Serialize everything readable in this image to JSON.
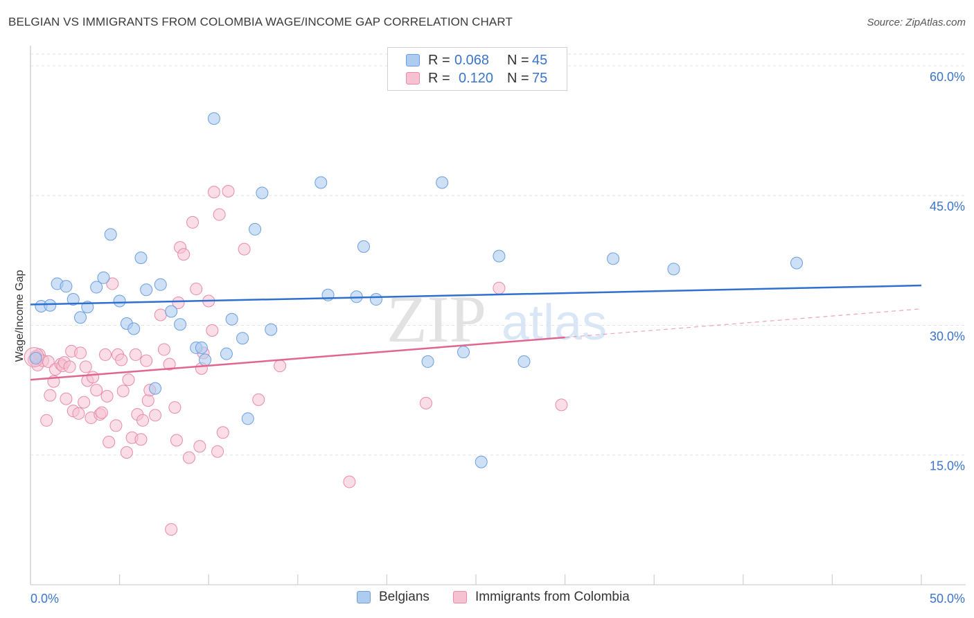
{
  "title": "BELGIAN VS IMMIGRANTS FROM COLOMBIA WAGE/INCOME GAP CORRELATION CHART",
  "source": "Source: ZipAtlas.com",
  "watermark": {
    "zip": "ZIP",
    "atlas": "atlas"
  },
  "legend_top": {
    "rows": [
      {
        "r_label": "R =",
        "r_value": "0.068",
        "n_label": "N =",
        "n_value": "45"
      },
      {
        "r_label": "R =",
        "r_value": "0.120",
        "n_label": "N =",
        "n_value": "75"
      }
    ]
  },
  "legend_bottom": {
    "items": [
      "Belgians",
      "Immigrants from Colombia"
    ]
  },
  "colors": {
    "blue_fill": "#aecbf0",
    "blue_stroke": "#6a9de0",
    "blue_line": "#2f6fd0",
    "pink_fill": "#f6c1d1",
    "pink_stroke": "#e88aa8",
    "pink_line": "#e0668f",
    "axis_text": "#3b74c9",
    "grid": "#e3e3e3"
  },
  "chart_data": {
    "type": "scatter",
    "title": "BELGIAN VS IMMIGRANTS FROM COLOMBIA WAGE/INCOME GAP CORRELATION CHART",
    "xlabel": "",
    "ylabel": "Wage/Income Gap",
    "xlim": [
      0,
      50
    ],
    "ylim": [
      0,
      62
    ],
    "x_tick_labels": [
      {
        "value": 0,
        "label": "0.0%"
      },
      {
        "value": 50,
        "label": "50.0%"
      }
    ],
    "y_tick_labels": [
      {
        "value": 15,
        "label": "15.0%"
      },
      {
        "value": 30,
        "label": "30.0%"
      },
      {
        "value": 45,
        "label": "45.0%"
      },
      {
        "value": 60,
        "label": "60.0%"
      }
    ],
    "grid": true,
    "series": [
      {
        "name": "Belgians",
        "r": 0.068,
        "n": 45,
        "trend": {
          "x": [
            0,
            50
          ],
          "y": [
            32.4,
            34.6
          ]
        },
        "points": [
          {
            "x": 0.3,
            "y": 26.2
          },
          {
            "x": 0.6,
            "y": 32.2
          },
          {
            "x": 1.1,
            "y": 32.3
          },
          {
            "x": 1.5,
            "y": 34.8
          },
          {
            "x": 2.0,
            "y": 34.5
          },
          {
            "x": 2.4,
            "y": 33.0
          },
          {
            "x": 2.8,
            "y": 30.9
          },
          {
            "x": 3.2,
            "y": 32.1
          },
          {
            "x": 3.7,
            "y": 34.4
          },
          {
            "x": 4.1,
            "y": 35.5
          },
          {
            "x": 4.5,
            "y": 40.5
          },
          {
            "x": 5.0,
            "y": 32.8
          },
          {
            "x": 5.4,
            "y": 30.2
          },
          {
            "x": 5.8,
            "y": 29.6
          },
          {
            "x": 6.2,
            "y": 37.8
          },
          {
            "x": 6.5,
            "y": 34.1
          },
          {
            "x": 7.0,
            "y": 22.7
          },
          {
            "x": 7.3,
            "y": 34.7
          },
          {
            "x": 7.9,
            "y": 31.6
          },
          {
            "x": 8.4,
            "y": 30.1
          },
          {
            "x": 9.3,
            "y": 27.4
          },
          {
            "x": 9.6,
            "y": 27.4
          },
          {
            "x": 9.8,
            "y": 26.0
          },
          {
            "x": 10.3,
            "y": 53.9
          },
          {
            "x": 11.0,
            "y": 26.7
          },
          {
            "x": 11.3,
            "y": 30.7
          },
          {
            "x": 11.9,
            "y": 28.5
          },
          {
            "x": 12.2,
            "y": 19.2
          },
          {
            "x": 12.6,
            "y": 41.1
          },
          {
            "x": 13.0,
            "y": 45.3
          },
          {
            "x": 13.5,
            "y": 29.5
          },
          {
            "x": 16.3,
            "y": 46.5
          },
          {
            "x": 16.7,
            "y": 33.5
          },
          {
            "x": 18.3,
            "y": 33.3
          },
          {
            "x": 18.7,
            "y": 39.1
          },
          {
            "x": 19.4,
            "y": 33.0
          },
          {
            "x": 22.3,
            "y": 25.8
          },
          {
            "x": 23.1,
            "y": 46.5
          },
          {
            "x": 24.3,
            "y": 26.9
          },
          {
            "x": 25.3,
            "y": 14.2
          },
          {
            "x": 26.3,
            "y": 38.0
          },
          {
            "x": 27.7,
            "y": 25.8
          },
          {
            "x": 32.7,
            "y": 37.7
          },
          {
            "x": 36.1,
            "y": 36.5
          },
          {
            "x": 43.0,
            "y": 37.2
          }
        ]
      },
      {
        "name": "Immigrants from Colombia",
        "r": 0.12,
        "n": 75,
        "trend": {
          "x": [
            0,
            30
          ],
          "y": [
            23.7,
            28.6
          ]
        },
        "trend_dashed": {
          "x": [
            30,
            50
          ],
          "y": [
            28.6,
            31.9
          ]
        },
        "points": [
          {
            "x": 0.2,
            "y": 26.0
          },
          {
            "x": 0.4,
            "y": 25.4
          },
          {
            "x": 0.5,
            "y": 26.6
          },
          {
            "x": 0.7,
            "y": 25.9
          },
          {
            "x": 0.9,
            "y": 19.0
          },
          {
            "x": 1.0,
            "y": 25.8
          },
          {
            "x": 1.1,
            "y": 21.9
          },
          {
            "x": 1.3,
            "y": 23.5
          },
          {
            "x": 1.4,
            "y": 24.9
          },
          {
            "x": 1.7,
            "y": 25.5
          },
          {
            "x": 1.8,
            "y": 25.3
          },
          {
            "x": 1.9,
            "y": 25.7
          },
          {
            "x": 2.0,
            "y": 21.5
          },
          {
            "x": 2.2,
            "y": 25.2
          },
          {
            "x": 2.3,
            "y": 27.0
          },
          {
            "x": 2.4,
            "y": 20.1
          },
          {
            "x": 2.7,
            "y": 19.8
          },
          {
            "x": 2.8,
            "y": 26.8
          },
          {
            "x": 3.0,
            "y": 21.1
          },
          {
            "x": 3.1,
            "y": 25.2
          },
          {
            "x": 3.2,
            "y": 23.6
          },
          {
            "x": 3.4,
            "y": 19.3
          },
          {
            "x": 3.5,
            "y": 24.0
          },
          {
            "x": 3.7,
            "y": 22.5
          },
          {
            "x": 3.9,
            "y": 19.7
          },
          {
            "x": 4.0,
            "y": 19.9
          },
          {
            "x": 4.2,
            "y": 26.6
          },
          {
            "x": 4.3,
            "y": 21.8
          },
          {
            "x": 4.4,
            "y": 16.5
          },
          {
            "x": 4.6,
            "y": 34.8
          },
          {
            "x": 4.8,
            "y": 18.4
          },
          {
            "x": 4.9,
            "y": 26.6
          },
          {
            "x": 5.1,
            "y": 26.0
          },
          {
            "x": 5.2,
            "y": 22.4
          },
          {
            "x": 5.4,
            "y": 15.3
          },
          {
            "x": 5.5,
            "y": 23.7
          },
          {
            "x": 5.7,
            "y": 17.0
          },
          {
            "x": 5.9,
            "y": 26.6
          },
          {
            "x": 6.0,
            "y": 19.7
          },
          {
            "x": 6.2,
            "y": 16.8
          },
          {
            "x": 6.3,
            "y": 19.0
          },
          {
            "x": 6.5,
            "y": 25.9
          },
          {
            "x": 6.6,
            "y": 21.3
          },
          {
            "x": 6.7,
            "y": 22.5
          },
          {
            "x": 7.0,
            "y": 19.6
          },
          {
            "x": 7.3,
            "y": 31.2
          },
          {
            "x": 7.5,
            "y": 27.2
          },
          {
            "x": 7.8,
            "y": 25.5
          },
          {
            "x": 7.9,
            "y": 6.4
          },
          {
            "x": 8.1,
            "y": 20.5
          },
          {
            "x": 8.3,
            "y": 32.6
          },
          {
            "x": 8.2,
            "y": 16.7
          },
          {
            "x": 8.4,
            "y": 39.0
          },
          {
            "x": 8.6,
            "y": 38.2
          },
          {
            "x": 8.9,
            "y": 14.7
          },
          {
            "x": 9.1,
            "y": 41.9
          },
          {
            "x": 9.3,
            "y": 34.2
          },
          {
            "x": 9.5,
            "y": 16.0
          },
          {
            "x": 9.6,
            "y": 25.0
          },
          {
            "x": 9.7,
            "y": 26.8
          },
          {
            "x": 10.0,
            "y": 32.8
          },
          {
            "x": 10.2,
            "y": 29.4
          },
          {
            "x": 10.3,
            "y": 45.4
          },
          {
            "x": 10.5,
            "y": 15.4
          },
          {
            "x": 10.6,
            "y": 42.8
          },
          {
            "x": 10.8,
            "y": 17.6
          },
          {
            "x": 11.1,
            "y": 45.5
          },
          {
            "x": 12.0,
            "y": 38.8
          },
          {
            "x": 12.8,
            "y": 21.4
          },
          {
            "x": 14.0,
            "y": 25.3
          },
          {
            "x": 17.9,
            "y": 11.9
          },
          {
            "x": 22.2,
            "y": 21.0
          },
          {
            "x": 26.3,
            "y": 34.3
          },
          {
            "x": 29.8,
            "y": 20.8
          },
          {
            "x": 0.3,
            "y": 26.4
          }
        ]
      }
    ]
  }
}
